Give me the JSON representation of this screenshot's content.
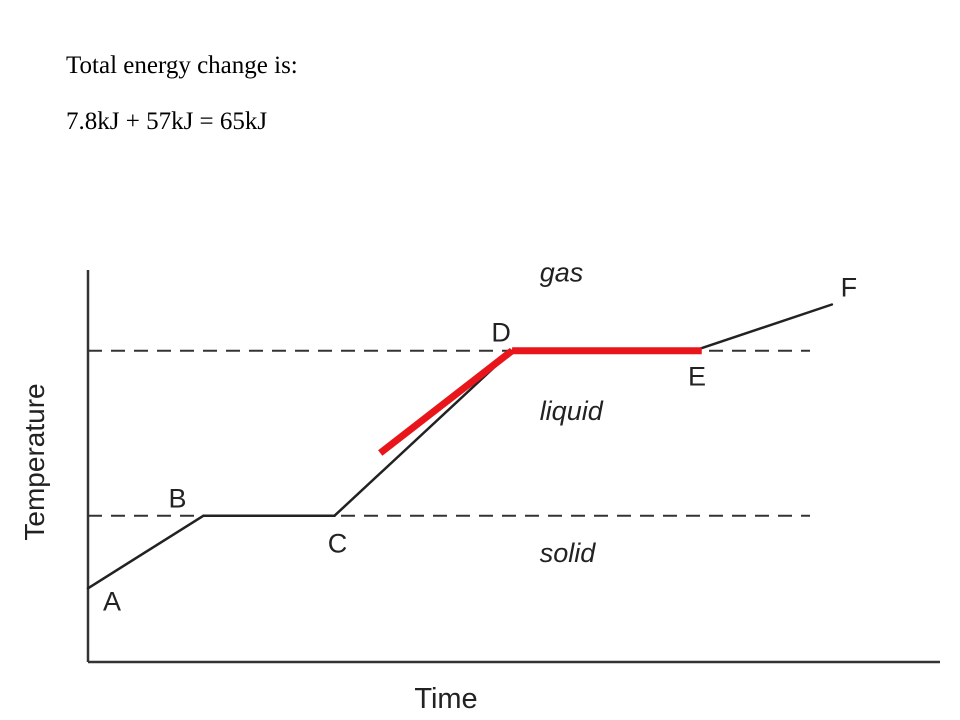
{
  "annotation": {
    "line1": "Total energy change is:",
    "line2": "7.8kJ + 57kJ = 65kJ"
  },
  "chart_data": {
    "type": "line",
    "title": "",
    "xlabel": "Time",
    "ylabel": "Temperature",
    "xlim": [
      0,
      100
    ],
    "ylim": [
      0,
      100
    ],
    "grid": false,
    "points": [
      {
        "label": "A",
        "x": 0,
        "y": 9
      },
      {
        "label": "B",
        "x": 13.4,
        "y": 31
      },
      {
        "label": "C",
        "x": 28.6,
        "y": 31
      },
      {
        "label": "D",
        "x": 49.2,
        "y": 81
      },
      {
        "label": "E",
        "x": 70.3,
        "y": 81
      },
      {
        "label": "F",
        "x": 86.3,
        "y": 95
      }
    ],
    "phase_lines": [
      {
        "name": "melting-point",
        "y": 31
      },
      {
        "name": "boiling-point",
        "y": 81
      }
    ],
    "regions": [
      {
        "label": "solid",
        "x": 52.4,
        "y": 17
      },
      {
        "label": "liquid",
        "x": 52.4,
        "y": 60
      },
      {
        "label": "gas",
        "x": 52.4,
        "y": 102
      }
    ],
    "highlights": [
      {
        "from": {
          "x": 33.9,
          "y": 50
        },
        "to": {
          "x": 49.2,
          "y": 81
        },
        "color": "#e8151b"
      },
      {
        "from": {
          "x": 49.2,
          "y": 81
        },
        "to": {
          "x": 71.2,
          "y": 81
        },
        "color": "#e8151b"
      }
    ],
    "colors": {
      "curve": "#222222",
      "axes": "#333333",
      "phase_lines": "#333333",
      "highlight": "#e8151b"
    }
  }
}
